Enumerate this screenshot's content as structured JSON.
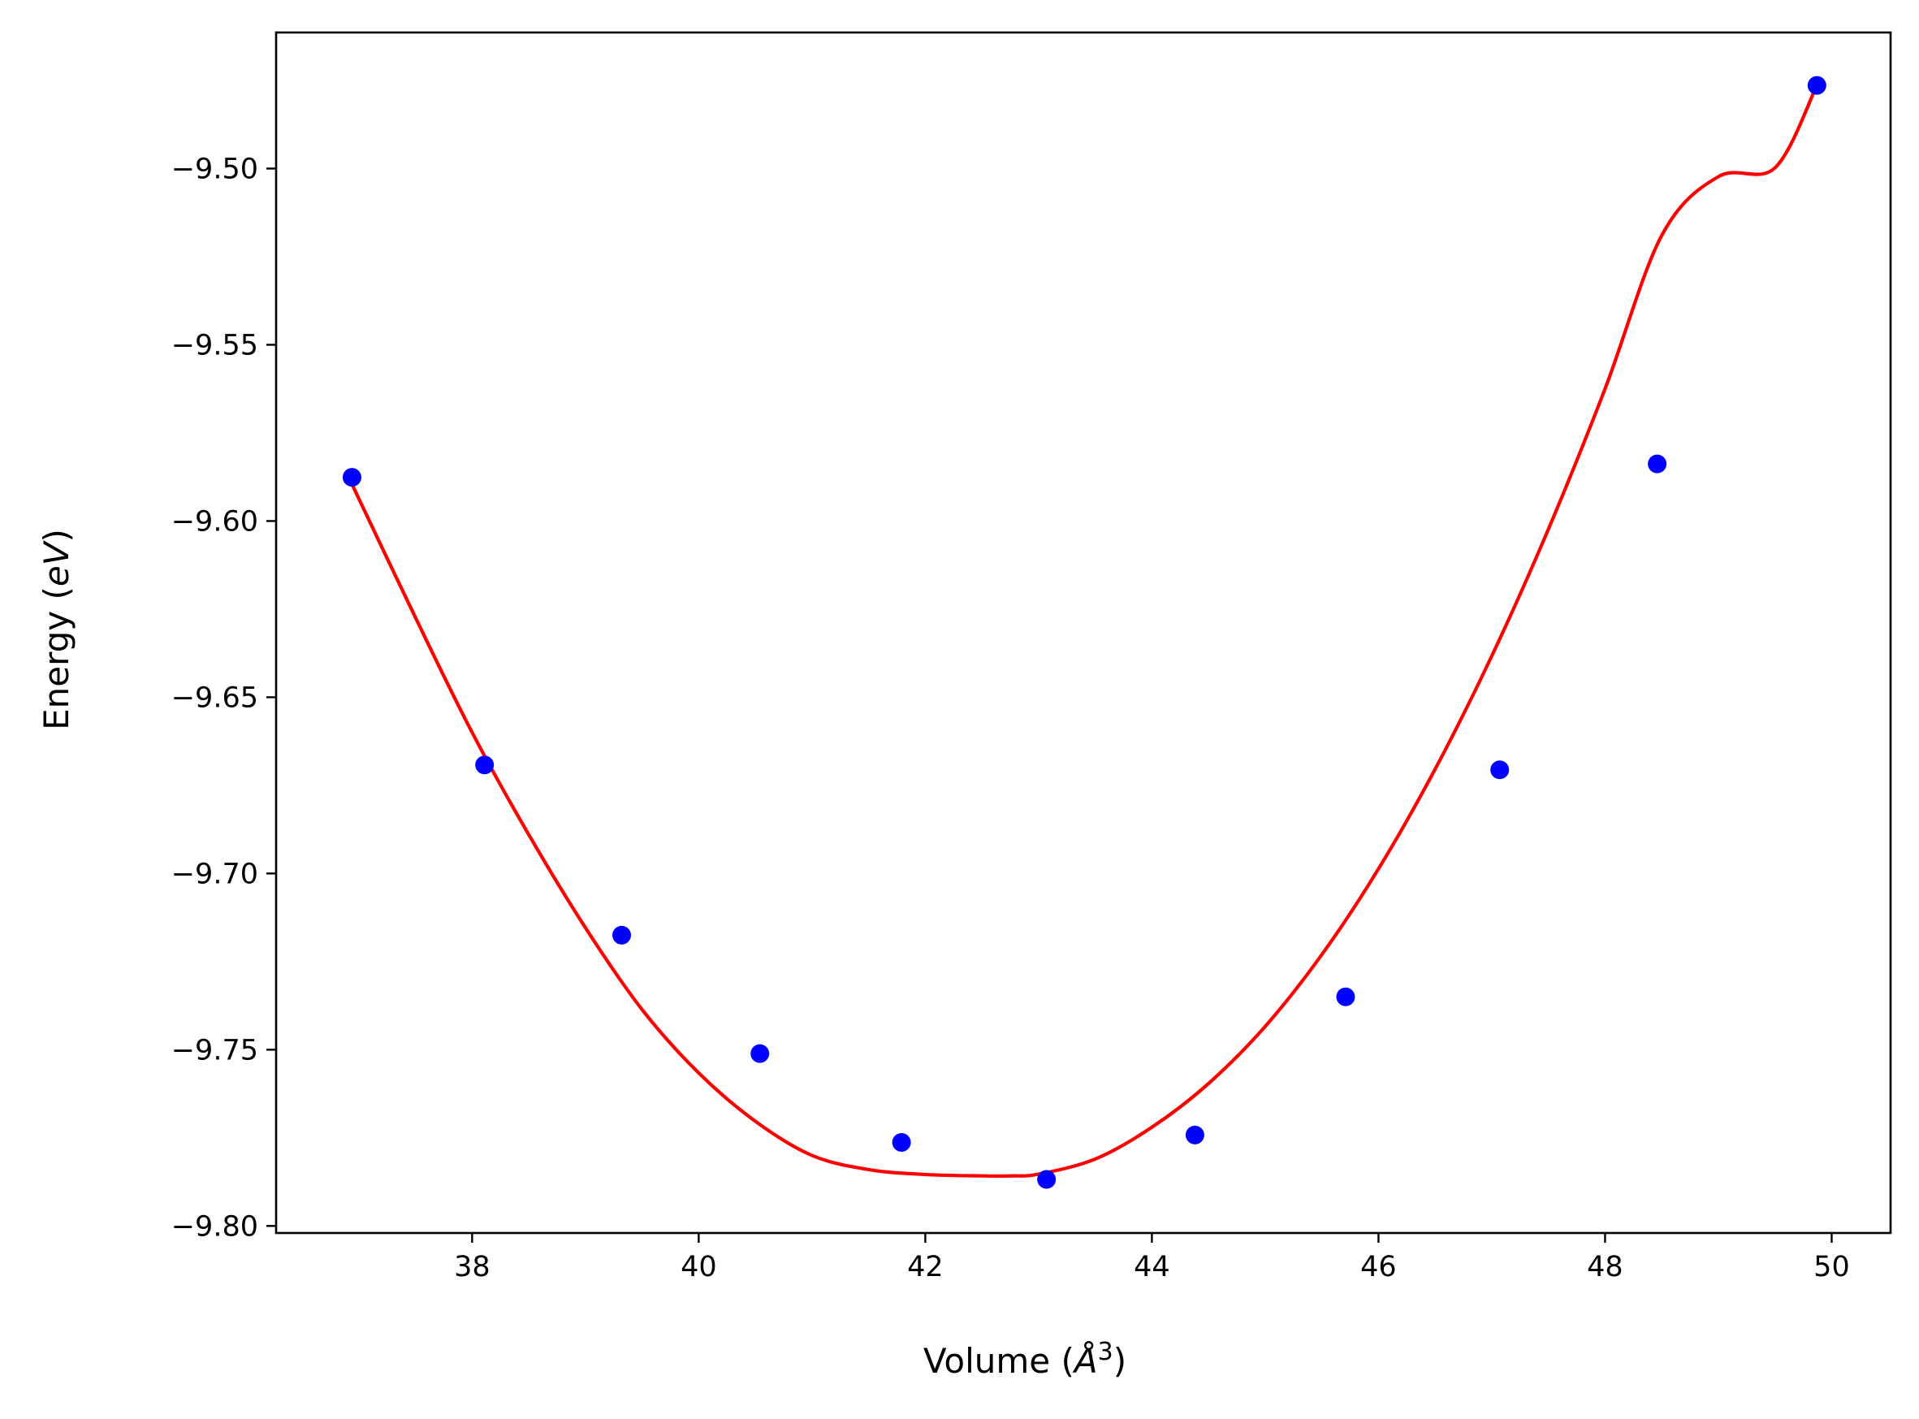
{
  "chart_data": {
    "type": "scatter",
    "title": "",
    "xlabel": {
      "prefix": "Volume (",
      "symbol": "Å",
      "superscript": "3",
      "suffix": ")"
    },
    "ylabel": {
      "prefix": "Energy (",
      "italic": "eV",
      "suffix": ")"
    },
    "xlim": [
      36.27,
      50.52
    ],
    "ylim": [
      -9.802,
      -9.4614
    ],
    "xticks": [
      38,
      40,
      42,
      44,
      46,
      48,
      50
    ],
    "xtick_labels": [
      "38",
      "40",
      "42",
      "44",
      "46",
      "48",
      "50"
    ],
    "yticks": [
      -9.5,
      -9.55,
      -9.6,
      -9.65,
      -9.7,
      -9.75,
      -9.8
    ],
    "ytick_labels": [
      "−9.50",
      "−9.55",
      "−9.60",
      "−9.65",
      "−9.70",
      "−9.75",
      "−9.80"
    ],
    "grid": false,
    "legend": "none",
    "series": [
      {
        "kind": "points",
        "color": "#0000ff",
        "x": [
          36.94,
          38.11,
          39.32,
          40.54,
          41.79,
          43.07,
          44.38,
          45.71,
          47.07,
          48.46,
          49.87
        ],
        "y": [
          -9.5876,
          -9.6692,
          -9.7175,
          -9.7511,
          -9.7763,
          -9.7868,
          -9.7742,
          -9.735,
          -9.6706,
          -9.5838,
          -9.4764
        ]
      },
      {
        "kind": "fit-curve",
        "color": "#ff0000",
        "x": [
          36.94,
          37.5,
          38.0,
          38.5,
          39.0,
          39.5,
          40.0,
          40.5,
          41.0,
          41.5,
          42.0,
          42.5,
          42.75,
          43.0,
          43.5,
          44.0,
          44.5,
          45.0,
          45.5,
          46.0,
          46.5,
          47.0,
          47.5,
          48.0,
          48.5,
          49.0,
          49.5,
          49.87
        ],
        "y": [
          -9.5896,
          -9.6274,
          -9.66,
          -9.689,
          -9.7154,
          -9.7386,
          -9.7566,
          -9.7703,
          -9.78,
          -9.784,
          -9.7854,
          -9.7858,
          -9.7858,
          -9.7853,
          -9.781,
          -9.772,
          -9.7596,
          -9.7434,
          -9.723,
          -9.6987,
          -9.6704,
          -9.6383,
          -9.6023,
          -9.5625,
          -9.519,
          -9.5023,
          -9.4998,
          -9.4764
        ]
      }
    ]
  }
}
